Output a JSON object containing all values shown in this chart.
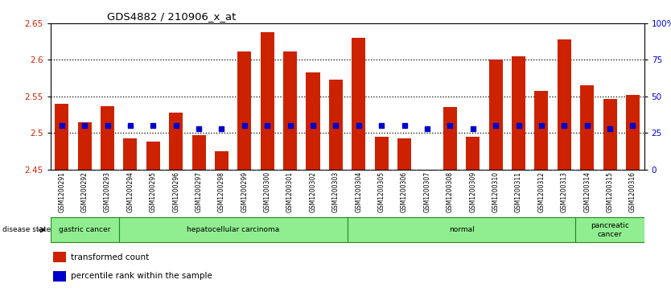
{
  "title": "GDS4882 / 210906_x_at",
  "samples": [
    "GSM1200291",
    "GSM1200292",
    "GSM1200293",
    "GSM1200294",
    "GSM1200295",
    "GSM1200296",
    "GSM1200297",
    "GSM1200298",
    "GSM1200299",
    "GSM1200300",
    "GSM1200301",
    "GSM1200302",
    "GSM1200303",
    "GSM1200304",
    "GSM1200305",
    "GSM1200306",
    "GSM1200307",
    "GSM1200308",
    "GSM1200309",
    "GSM1200310",
    "GSM1200311",
    "GSM1200312",
    "GSM1200313",
    "GSM1200314",
    "GSM1200315",
    "GSM1200316"
  ],
  "transformed_count": [
    2.54,
    2.515,
    2.536,
    2.493,
    2.488,
    2.528,
    2.497,
    2.475,
    2.612,
    2.638,
    2.612,
    2.583,
    2.573,
    2.63,
    2.495,
    2.492,
    2.447,
    2.535,
    2.495,
    2.6,
    2.605,
    2.558,
    2.628,
    2.565,
    2.546,
    2.552
  ],
  "percentile_rank": [
    30,
    30,
    30,
    30,
    30,
    30,
    28,
    28,
    30,
    30,
    30,
    30,
    30,
    30,
    30,
    30,
    28,
    30,
    28,
    30,
    30,
    30,
    30,
    30,
    28,
    30
  ],
  "bar_color": "#CC2200",
  "dot_color": "#0000CC",
  "ylim_left": [
    2.45,
    2.65
  ],
  "ylim_right": [
    0,
    100
  ],
  "yticks_left": [
    2.45,
    2.5,
    2.55,
    2.6,
    2.65
  ],
  "yticks_right": [
    0,
    25,
    50,
    75,
    100
  ],
  "ytick_labels_right": [
    "0",
    "25",
    "50",
    "75",
    "100%"
  ],
  "grid_lines": [
    2.5,
    2.55,
    2.6
  ],
  "bar_width": 0.6,
  "group_spans": [
    [
      0,
      3,
      "gastric cancer"
    ],
    [
      3,
      13,
      "hepatocellular carcinoma"
    ],
    [
      13,
      23,
      "normal"
    ],
    [
      23,
      26,
      "pancreatic\ncancer"
    ]
  ],
  "group_color": "#90EE90",
  "group_edge_color": "#228B22"
}
